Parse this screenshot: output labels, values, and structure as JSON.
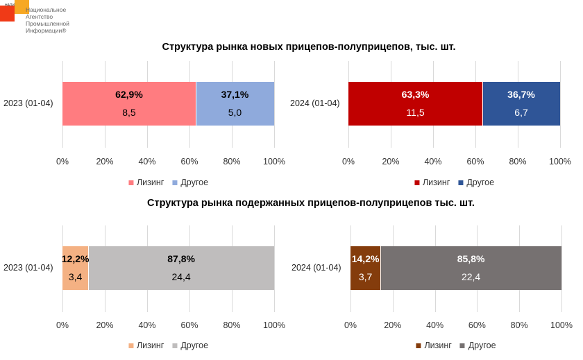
{
  "logo": {
    "abbr": "НАПИ",
    "lines": [
      "Национальное",
      "Агентство",
      "Промышленной",
      "Информации®"
    ]
  },
  "titles": [
    "Структура рынка новых прицепов-полуприцепов, тыс. шт.",
    "Структура рынка подержанных прицепов-полуприцепов  тыс. шт."
  ],
  "chart_data": [
    {
      "type": "bar",
      "stacked": "100%",
      "orientation": "horizontal",
      "category": "2023 (01-04)",
      "xlim": [
        0,
        100
      ],
      "ticks": [
        "0%",
        "20%",
        "40%",
        "60%",
        "80%",
        "100%"
      ],
      "legend": "bottom",
      "label_color": "#000000",
      "series": [
        {
          "name": "Лизинг",
          "percent": 62.9,
          "percent_label": "62,9%",
          "value_label": "8,5",
          "color": "#FF7C80"
        },
        {
          "name": "Другое",
          "percent": 37.1,
          "percent_label": "37,1%",
          "value_label": "5,0",
          "color": "#8FAADC"
        }
      ]
    },
    {
      "type": "bar",
      "stacked": "100%",
      "orientation": "horizontal",
      "category": "2024 (01-04)",
      "xlim": [
        0,
        100
      ],
      "ticks": [
        "0%",
        "20%",
        "40%",
        "60%",
        "80%",
        "100%"
      ],
      "legend": "bottom",
      "label_color": "#ffffff",
      "series": [
        {
          "name": "Лизинг",
          "percent": 63.3,
          "percent_label": "63,3%",
          "value_label": "11,5",
          "color": "#C00000"
        },
        {
          "name": "Другое",
          "percent": 36.7,
          "percent_label": "36,7%",
          "value_label": "6,7",
          "color": "#2F5597"
        }
      ]
    },
    {
      "type": "bar",
      "stacked": "100%",
      "orientation": "horizontal",
      "category": "2023 (01-04)",
      "xlim": [
        0,
        100
      ],
      "ticks": [
        "0%",
        "20%",
        "40%",
        "60%",
        "80%",
        "100%"
      ],
      "legend": "bottom",
      "label_color": "#000000",
      "series": [
        {
          "name": "Лизинг",
          "percent": 12.2,
          "percent_label": "12,2%",
          "value_label": "3,4",
          "color": "#F4B183"
        },
        {
          "name": "Другое",
          "percent": 87.8,
          "percent_label": "87,8%",
          "value_label": "24,4",
          "color": "#BFBDBD"
        }
      ]
    },
    {
      "type": "bar",
      "stacked": "100%",
      "orientation": "horizontal",
      "category": "2024 (01-04)",
      "xlim": [
        0,
        100
      ],
      "ticks": [
        "0%",
        "20%",
        "40%",
        "60%",
        "80%",
        "100%"
      ],
      "legend": "bottom",
      "label_color": "#ffffff",
      "series": [
        {
          "name": "Лизинг",
          "percent": 14.2,
          "percent_label": "14,2%",
          "value_label": "3,7",
          "color": "#843C0C"
        },
        {
          "name": "Другое",
          "percent": 85.8,
          "percent_label": "85,8%",
          "value_label": "22,4",
          "color": "#767171"
        }
      ]
    }
  ]
}
